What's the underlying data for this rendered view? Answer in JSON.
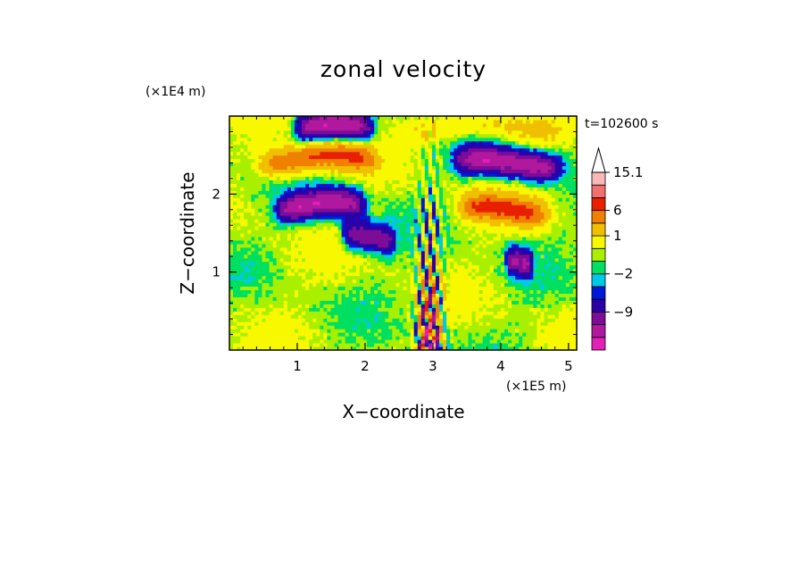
{
  "chart_data": {
    "type": "heatmap",
    "title": "zonal velocity",
    "xlabel": "X−coordinate",
    "ylabel": "Z−coordinate",
    "x_scale_note": "(×1E5 m)",
    "y_scale_note": "(×1E4 m)",
    "time_label": "t=102600 s",
    "xlim": [
      0,
      5.12
    ],
    "ylim": [
      0,
      3.0
    ],
    "x_ticks": [
      1,
      2,
      3,
      4,
      5
    ],
    "y_ticks": [
      1,
      2
    ],
    "colorbar": {
      "levels": [
        -15,
        -12,
        -9,
        -6,
        -3,
        -2,
        -1,
        0,
        1,
        3,
        6,
        9,
        12,
        15.1
      ],
      "labeled": [
        "15.1",
        "6",
        "1",
        "−2",
        "−9"
      ],
      "colors": [
        "#e020b8",
        "#b0189e",
        "#7d0c96",
        "#2a00a8",
        "#0018d8",
        "#00c8e8",
        "#00e060",
        "#a8f000",
        "#f8f800",
        "#f0c000",
        "#f08000",
        "#e82000",
        "#f07070",
        "#f8b8b8"
      ],
      "extend": "max"
    },
    "bands": [
      {
        "z": 2.85,
        "value": -12,
        "xmin": 0.9,
        "xmax": 2.2
      },
      {
        "z": 2.85,
        "value": 3,
        "xmin": 2.4,
        "xmax": 5.1
      },
      {
        "z": 2.45,
        "value": 9,
        "xmin": 0.3,
        "xmax": 2.3
      },
      {
        "z": 2.4,
        "value": -12,
        "xmin": 3.2,
        "xmax": 5.0
      },
      {
        "z": 1.85,
        "value": -12,
        "xmin": 0.6,
        "xmax": 2.1
      },
      {
        "z": 1.8,
        "value": 9,
        "xmin": 3.3,
        "xmax": 4.8
      },
      {
        "z": 1.45,
        "value": -9,
        "xmin": 1.6,
        "xmax": 2.5
      },
      {
        "z": 1.15,
        "value": -9,
        "xmin": 4.05,
        "xmax": 4.5
      }
    ]
  }
}
